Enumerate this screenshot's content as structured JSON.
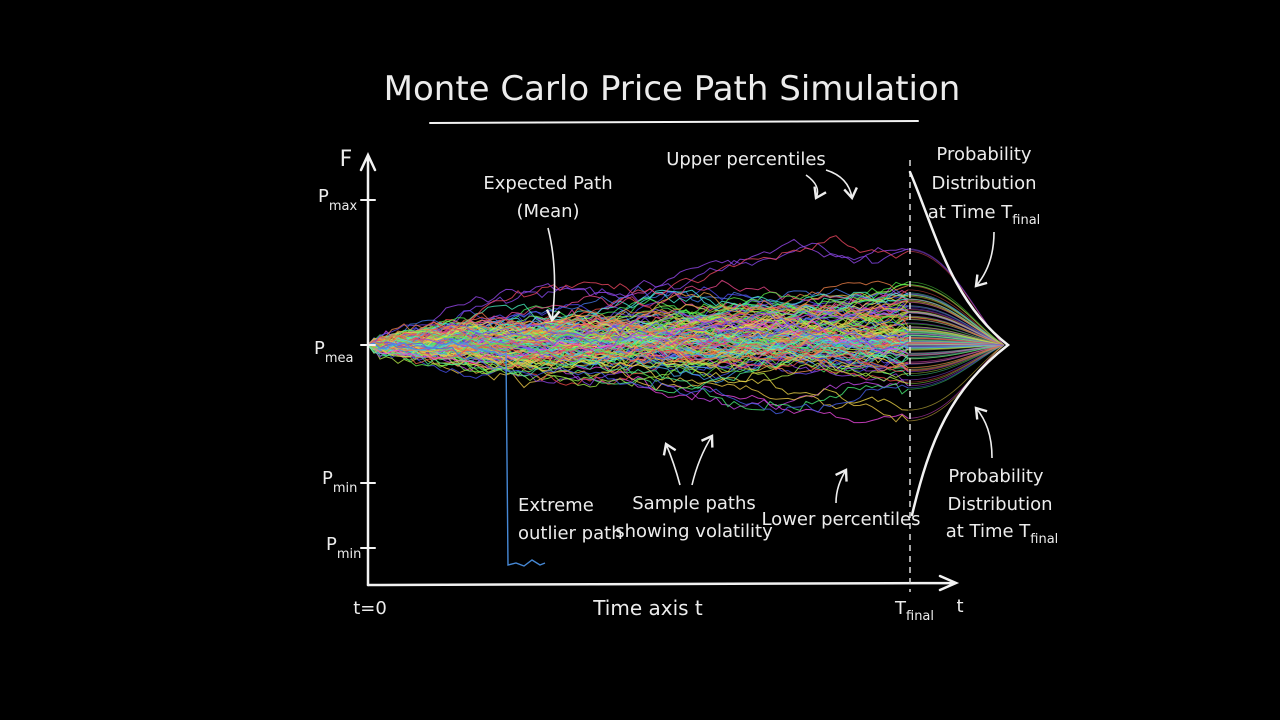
{
  "title": "Monte Carlo Price Path Simulation",
  "y_axis_label": "F",
  "y_labels": [
    {
      "text": "P",
      "sub": "max"
    },
    {
      "text": "P",
      "sub": "mea"
    },
    {
      "text": "P",
      "sub": "min"
    },
    {
      "text": "P",
      "sub": "min"
    }
  ],
  "x_labels": {
    "start": "t=0",
    "axis": "Time axis t",
    "end": {
      "text": "T",
      "sub": "final"
    },
    "t": "t"
  },
  "annotations": {
    "expected_path": [
      "Expected Path",
      "(Mean)"
    ],
    "upper_percentiles": "Upper percentiles",
    "distribution_top": [
      "Probability",
      "Distribution",
      {
        "text": "at Time T",
        "sub": "final"
      }
    ],
    "extreme_outlier": [
      "Extreme",
      "outlier path"
    ],
    "sample_paths": [
      "Sample paths",
      "showing volatility"
    ],
    "lower_percentiles": "Lower percentiles",
    "distribution_bottom": [
      "Probability",
      "Distribution",
      {
        "text": "at Time T",
        "sub": "final"
      }
    ]
  }
}
